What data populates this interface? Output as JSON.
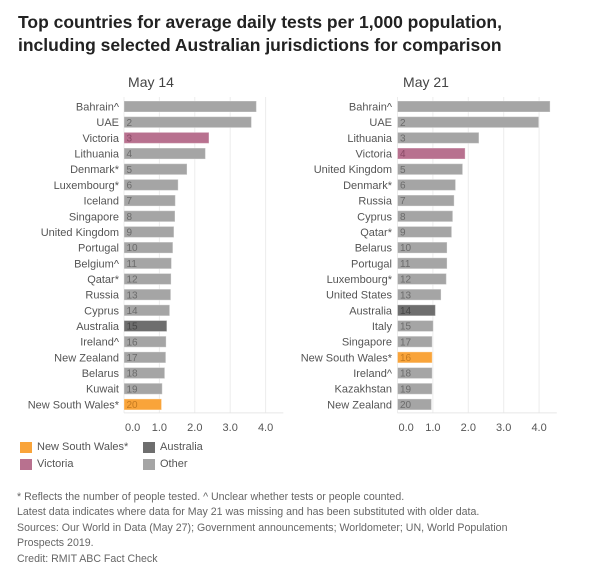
{
  "title": {
    "line1": "Top countries for average daily tests per 1,000 population,",
    "line2": "including selected Australian jurisdictions for comparison"
  },
  "colors": {
    "other": "#a5a5a5",
    "australia": "#6e6e6e",
    "victoria": "#b8718f",
    "nsw": "#f9a43a",
    "label_on_other": "#6b6b6b",
    "label_on_australia": "#474747",
    "label_on_victoria": "#8a4a66",
    "label_on_nsw": "#c47a20",
    "axis_text": "#555555",
    "gridline": "#ececec"
  },
  "legend": {
    "items": [
      {
        "label": "New South Wales*",
        "group": "nsw"
      },
      {
        "label": "Australia",
        "group": "australia"
      },
      {
        "label": "Victoria",
        "group": "victoria"
      },
      {
        "label": "Other",
        "group": "other"
      }
    ]
  },
  "footnotes": [
    "* Reflects the number of people tested. ^ Unclear whether tests or people counted.",
    "Latest data indicates where data for May 21 was missing and has been substituted with older data.",
    "Sources: Our World in Data (May 27); Government announcements; Worldometer; UN, World Population",
    "Prospects 2019.",
    "Credit: RMIT ABC Fact Check"
  ],
  "chart_data": [
    {
      "type": "bar",
      "orientation": "horizontal",
      "title": "May 14",
      "xlabel": "",
      "ylabel": "",
      "xlim": [
        0,
        4.5
      ],
      "xticks": [
        0,
        1,
        2,
        3,
        4
      ],
      "xtick_labels": [
        "0.0",
        "1.0",
        "2.0",
        "3.0",
        "4.0"
      ],
      "grid": true,
      "categories": [
        "Bahrain^",
        "UAE",
        "Victoria",
        "Lithuania",
        "Denmark*",
        "Luxembourg*",
        "Iceland",
        "Singapore",
        "United Kingdom",
        "Portugal",
        "Belgium^",
        "Qatar*",
        "Russia",
        "Cyprus",
        "Australia",
        "Ireland^",
        "New Zealand",
        "Belarus",
        "Kuwait",
        "New South Wales*"
      ],
      "values": [
        3.74,
        3.6,
        2.4,
        2.3,
        1.78,
        1.53,
        1.45,
        1.44,
        1.41,
        1.38,
        1.34,
        1.33,
        1.32,
        1.29,
        1.21,
        1.19,
        1.18,
        1.15,
        1.08,
        1.06
      ],
      "rank_labels": [
        "",
        "2",
        "3",
        "4",
        "5",
        "6",
        "7",
        "8",
        "9",
        "10",
        "11",
        "12",
        "13",
        "14",
        "15",
        "16",
        "17",
        "18",
        "19",
        "20"
      ],
      "groups": [
        "other",
        "other",
        "victoria",
        "other",
        "other",
        "other",
        "other",
        "other",
        "other",
        "other",
        "other",
        "other",
        "other",
        "other",
        "australia",
        "other",
        "other",
        "other",
        "other",
        "nsw"
      ]
    },
    {
      "type": "bar",
      "orientation": "horizontal",
      "title": "May 21",
      "xlabel": "",
      "ylabel": "",
      "xlim": [
        0,
        4.5
      ],
      "xticks": [
        0,
        1,
        2,
        3,
        4
      ],
      "xtick_labels": [
        "0.0",
        "1.0",
        "2.0",
        "3.0",
        "4.0"
      ],
      "grid": true,
      "categories": [
        "Bahrain^",
        "UAE",
        "Lithuania",
        "Victoria",
        "United Kingdom",
        "Denmark*",
        "Russia",
        "Cyprus",
        "Qatar*",
        "Belarus",
        "Portugal",
        "Luxembourg*",
        "United States",
        "Australia",
        "Italy",
        "Singapore",
        "New South Wales*",
        "Ireland^",
        "Kazakhstan",
        "New Zealand"
      ],
      "values": [
        4.31,
        3.99,
        2.3,
        1.91,
        1.84,
        1.64,
        1.6,
        1.56,
        1.53,
        1.4,
        1.4,
        1.38,
        1.23,
        1.07,
        1.01,
        0.98,
        0.98,
        0.98,
        0.98,
        0.96
      ],
      "rank_labels": [
        "",
        "2",
        "3",
        "4",
        "5",
        "6",
        "7",
        "8",
        "9",
        "10",
        "11",
        "12",
        "13",
        "14",
        "15",
        "17",
        "16",
        "18",
        "19",
        "20"
      ],
      "groups": [
        "other",
        "other",
        "other",
        "victoria",
        "other",
        "other",
        "other",
        "other",
        "other",
        "other",
        "other",
        "other",
        "other",
        "australia",
        "other",
        "other",
        "nsw",
        "other",
        "other",
        "other"
      ]
    }
  ]
}
